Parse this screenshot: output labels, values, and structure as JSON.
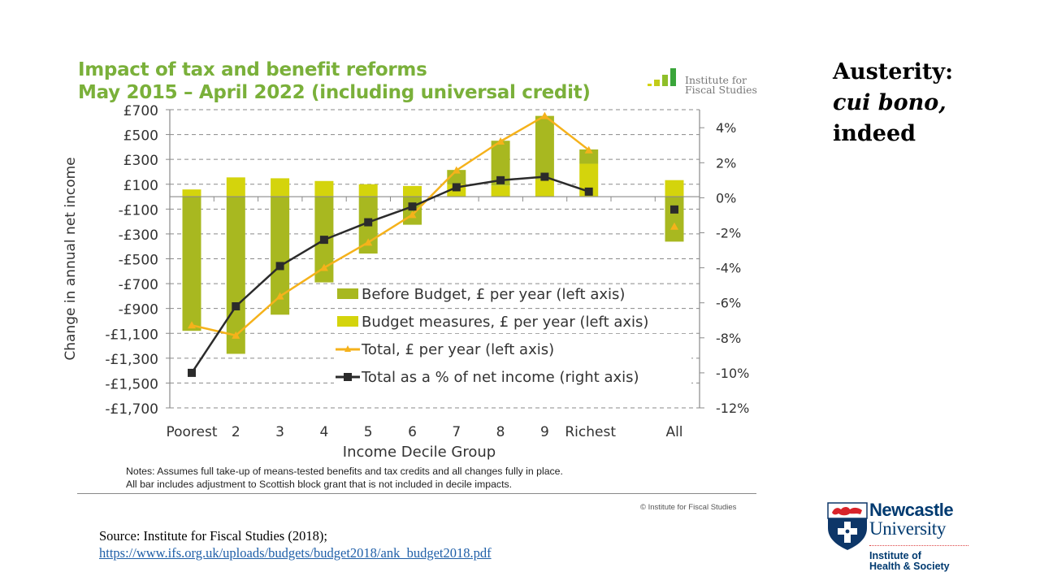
{
  "slide": {
    "title_line1": "Austerity:",
    "title_line2": "cui bono,",
    "title_line3": "indeed",
    "source_label": "Source: Institute for Fiscal Studies (2018);",
    "source_link": "https://www.ifs.org.uk/uploads/budgets/budget2018/ank_budget2018.pdf"
  },
  "ifs_logo": {
    "line1": "Institute for",
    "line2": "Fiscal Studies"
  },
  "ncl_logo": {
    "line1": "Newcastle",
    "line2": "University",
    "inst1": "Institute of",
    "inst2": "Health & Society"
  },
  "notes": {
    "line1": "Notes: Assumes full take-up of means-tested benefits and tax credits and all changes fully in place.",
    "line2": "All bar includes adjustment to Scottish block grant that is not included in decile impacts.",
    "copyright": "© Institute for Fiscal Studies"
  },
  "colors": {
    "title_green": "#7ab03a",
    "before_budget": "#a8b820",
    "budget_measures": "#d4d40c",
    "total_pounds": "#f5b21b",
    "total_pct": "#2b2b2b"
  },
  "chart_data": {
    "type": "bar",
    "title": "Impact of tax and benefit reforms",
    "subtitle": "May 2015 – April 2022 (including universal credit)",
    "xlabel": "Income Decile Group",
    "ylabel": "Change in annual net income",
    "y2label": "",
    "categories": [
      "Poorest",
      "2",
      "3",
      "4",
      "5",
      "6",
      "7",
      "8",
      "9",
      "Richest",
      "All"
    ],
    "gap_before_last": true,
    "ylim": [
      -1700,
      700
    ],
    "yticks": [
      700,
      500,
      300,
      100,
      -100,
      -300,
      -500,
      -700,
      -900,
      -1100,
      -1300,
      -1500,
      -1700
    ],
    "ytick_labels": [
      "£700",
      "£500",
      "£300",
      "£100",
      "-£100",
      "-£300",
      "-£500",
      "-£700",
      "-£900",
      "-£1,100",
      "-£1,300",
      "-£1,500",
      "-£1,700"
    ],
    "y2lim": [
      -12,
      5.03
    ],
    "y2ticks": [
      4,
      2,
      0,
      -2,
      -4,
      -6,
      -8,
      -10,
      -12
    ],
    "y2tick_labels": [
      "4%",
      "2%",
      "0%",
      "-2%",
      "-4%",
      "-6%",
      "-8%",
      "-10%",
      "-12%"
    ],
    "grid": "horizontal dashed",
    "legend_position": "lower-right inside plot",
    "series": [
      {
        "name": "Before Budget, £ per year (left axis)",
        "type": "bar",
        "axis": "left",
        "values": [
          -1080,
          -1265,
          -950,
          -690,
          -458,
          -226,
          115,
          360,
          510,
          115,
          -362
        ]
      },
      {
        "name": "Budget measures, £ per year (left axis)",
        "type": "bar",
        "axis": "left",
        "values": [
          58,
          155,
          148,
          126,
          100,
          86,
          100,
          90,
          140,
          265,
          133
        ]
      },
      {
        "name": "Total, £ per year (left axis)",
        "type": "line",
        "marker": "triangle",
        "axis": "left",
        "values": [
          -1035,
          -1117,
          -802,
          -572,
          -368,
          -146,
          212,
          445,
          650,
          375,
          -240
        ],
        "connect_last": false
      },
      {
        "name": "Total as a % of net income (right axis)",
        "type": "line",
        "marker": "square",
        "axis": "right",
        "values": [
          -10.0,
          -6.2,
          -3.9,
          -2.4,
          -1.4,
          -0.5,
          0.6,
          1.0,
          1.2,
          0.35,
          -0.67
        ],
        "connect_last": false
      }
    ]
  }
}
